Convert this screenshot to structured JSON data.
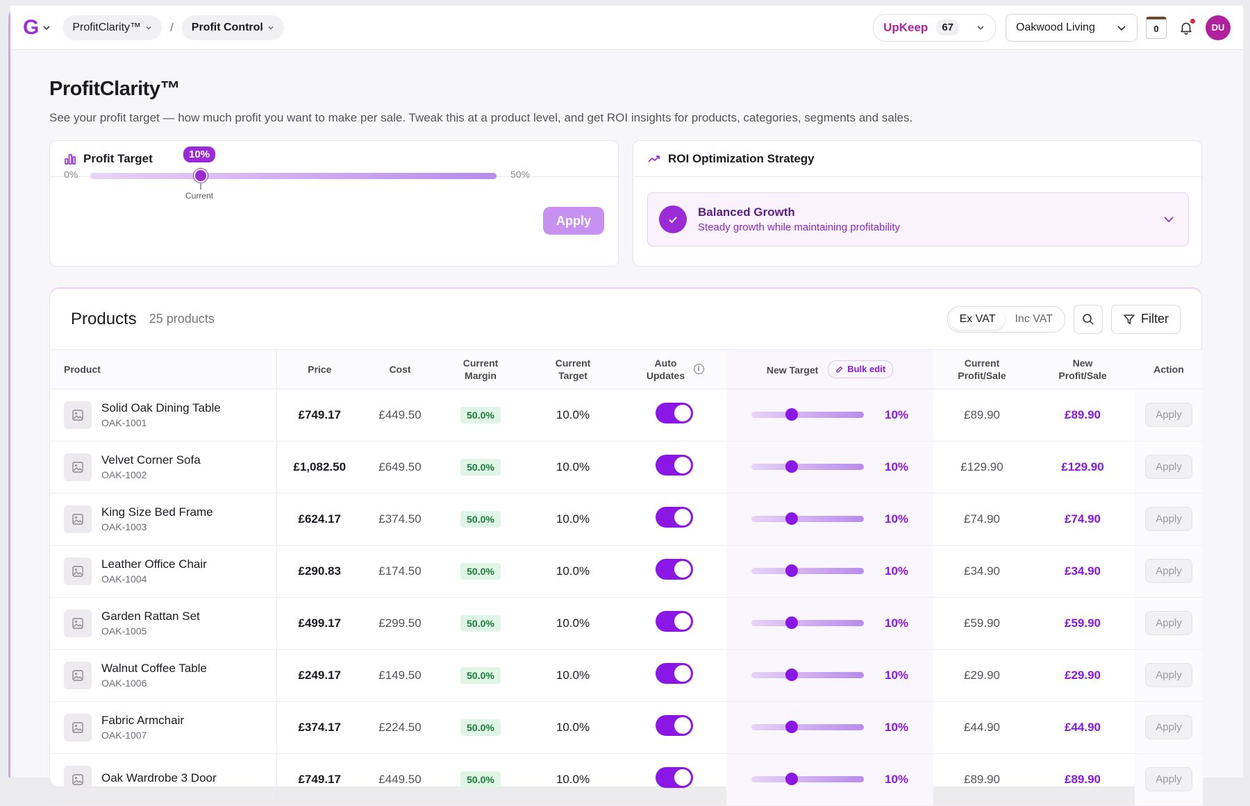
{
  "topbar": {
    "logo": "G",
    "crumbs": [
      "ProfitClarity™",
      "Profit Control"
    ],
    "separator": "/",
    "upkeep_label": "UpKeep",
    "upkeep_count": "67",
    "store": "Oakwood Living",
    "calendar_day": "0",
    "avatar": "DU"
  },
  "header": {
    "title": "ProfitClarity™",
    "subtitle": "See your profit target — how much profit you want to make per sale. Tweak this at a product level, and get ROI insights for products, categories, segments and sales."
  },
  "profit_target": {
    "title": "Profit Target",
    "min_label": "0%",
    "max_label": "50%",
    "value_label": "10%",
    "value": 10,
    "min": 0,
    "max": 50,
    "current_label": "Current",
    "apply_label": "Apply"
  },
  "roi": {
    "title": "ROI Optimization Strategy",
    "strategy_name": "Balanced Growth",
    "strategy_desc": "Steady growth while maintaining profitability"
  },
  "products": {
    "title": "Products",
    "count": "25 products",
    "vat_ex": "Ex VAT",
    "vat_inc": "Inc VAT",
    "filter_label": "Filter",
    "bulk_edit": "Bulk edit",
    "columns": {
      "product": "Product",
      "price": "Price",
      "cost": "Cost",
      "current_margin": "Current Margin",
      "current_target": "Current Target",
      "auto_updates": "Auto Updates",
      "new_target": "New Target",
      "current_profit": "Current Profit/Sale",
      "new_profit": "New Profit/Sale",
      "action": "Action"
    },
    "apply_row_label": "Apply",
    "rows": [
      {
        "name": "Solid Oak Dining Table",
        "sku": "OAK-1001",
        "price": "£749.17",
        "cost": "£449.50",
        "margin": "50.0%",
        "target": "10.0%",
        "new_target": "10%",
        "new_target_value": 10,
        "cur_profit": "£89.90",
        "new_profit": "£89.90"
      },
      {
        "name": "Velvet Corner Sofa",
        "sku": "OAK-1002",
        "price": "£1,082.50",
        "cost": "£649.50",
        "margin": "50.0%",
        "target": "10.0%",
        "new_target": "10%",
        "new_target_value": 10,
        "cur_profit": "£129.90",
        "new_profit": "£129.90"
      },
      {
        "name": "King Size Bed Frame",
        "sku": "OAK-1003",
        "price": "£624.17",
        "cost": "£374.50",
        "margin": "50.0%",
        "target": "10.0%",
        "new_target": "10%",
        "new_target_value": 10,
        "cur_profit": "£74.90",
        "new_profit": "£74.90"
      },
      {
        "name": "Leather Office Chair",
        "sku": "OAK-1004",
        "price": "£290.83",
        "cost": "£174.50",
        "margin": "50.0%",
        "target": "10.0%",
        "new_target": "10%",
        "new_target_value": 10,
        "cur_profit": "£34.90",
        "new_profit": "£34.90"
      },
      {
        "name": "Garden Rattan Set",
        "sku": "OAK-1005",
        "price": "£499.17",
        "cost": "£299.50",
        "margin": "50.0%",
        "target": "10.0%",
        "new_target": "10%",
        "new_target_value": 10,
        "cur_profit": "£59.90",
        "new_profit": "£59.90"
      },
      {
        "name": "Walnut Coffee Table",
        "sku": "OAK-1006",
        "price": "£249.17",
        "cost": "£149.50",
        "margin": "50.0%",
        "target": "10.0%",
        "new_target": "10%",
        "new_target_value": 10,
        "cur_profit": "£29.90",
        "new_profit": "£29.90"
      },
      {
        "name": "Fabric Armchair",
        "sku": "OAK-1007",
        "price": "£374.17",
        "cost": "£224.50",
        "margin": "50.0%",
        "target": "10.0%",
        "new_target": "10%",
        "new_target_value": 10,
        "cur_profit": "£44.90",
        "new_profit": "£44.90"
      },
      {
        "name": "Oak Wardrobe 3 Door",
        "sku": "",
        "price": "£749.17",
        "cost": "£449.50",
        "margin": "50.0%",
        "target": "10.0%",
        "new_target": "10%",
        "new_target_value": 10,
        "cur_profit": "£89.90",
        "new_profit": "£89.90"
      }
    ]
  }
}
